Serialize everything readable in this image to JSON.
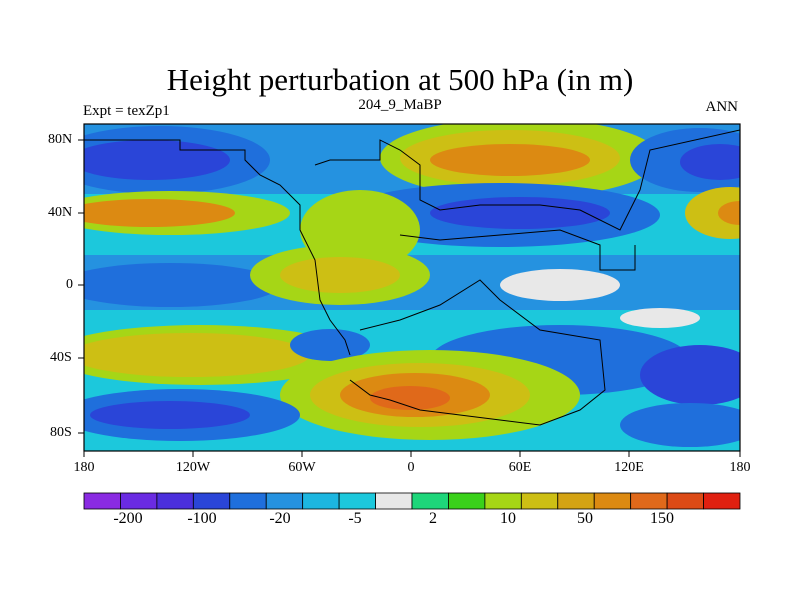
{
  "title": "Height perturbation at 500 hPa (in m)",
  "subtitle_left": "Expt = texZp1",
  "subtitle_center": "204_9_MaBP",
  "subtitle_right": "ANN",
  "lat_labels": [
    "80N",
    "40N",
    "0",
    "40S",
    "80S"
  ],
  "lon_labels": [
    "180",
    "120W",
    "60W",
    "0",
    "60E",
    "120E",
    "180"
  ],
  "colorbar": {
    "labels": [
      "-200",
      "-100",
      "-20",
      "-5",
      "2",
      "10",
      "50",
      "150"
    ],
    "colors": [
      "#8a2be2",
      "#6a2be2",
      "#4b2fdc",
      "#2a45d8",
      "#1f6fdc",
      "#2592e0",
      "#1cb6e0",
      "#1cc8dc",
      "#e8e8e8",
      "#1ed67a",
      "#3ad11a",
      "#a6d616",
      "#cdbf14",
      "#d4a313",
      "#dc8a12",
      "#e0691a",
      "#dc4a16",
      "#e02010"
    ]
  }
}
